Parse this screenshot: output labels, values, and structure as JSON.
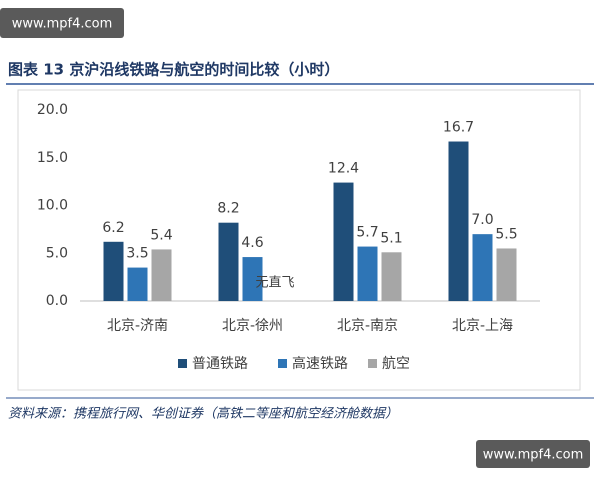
{
  "watermarks": [
    "www.mpf4.com",
    "www.mpf4.com"
  ],
  "chart_data": {
    "type": "bar",
    "title": "图表 13 京沪沿线铁路与航空的时间比较（小时）",
    "categories": [
      "北京-济南",
      "北京-徐州",
      "北京-南京",
      "北京-上海"
    ],
    "series": [
      {
        "name": "普通铁路",
        "color": "#1f4e79",
        "values": [
          6.2,
          8.2,
          12.4,
          16.7
        ],
        "value_labels": [
          "6.2",
          "8.2",
          "12.4",
          "16.7"
        ]
      },
      {
        "name": "高速铁路",
        "color": "#2e75b6",
        "values": [
          3.5,
          4.6,
          5.7,
          7.0
        ],
        "value_labels": [
          "3.5",
          "4.6",
          "5.7",
          "7.0"
        ]
      },
      {
        "name": "航空",
        "color": "#a6a6a6",
        "values": [
          5.4,
          null,
          5.1,
          5.5
        ],
        "value_labels": [
          "5.4",
          null,
          "5.1",
          "5.5"
        ]
      }
    ],
    "ylim": [
      0,
      20
    ],
    "yticks": [
      {
        "value": 0,
        "label": "0.0"
      },
      {
        "value": 5,
        "label": "5.0"
      },
      {
        "value": 10,
        "label": "10.0"
      },
      {
        "value": 15,
        "label": "15.0"
      },
      {
        "value": 20,
        "label": "20.0"
      }
    ],
    "grid": false,
    "legend": "bottom",
    "annotations": [
      {
        "text": "无直飞"
      }
    ],
    "source": "资料来源：携程旅行网、华创证券（高铁二等座和航空经济舱数据）"
  }
}
